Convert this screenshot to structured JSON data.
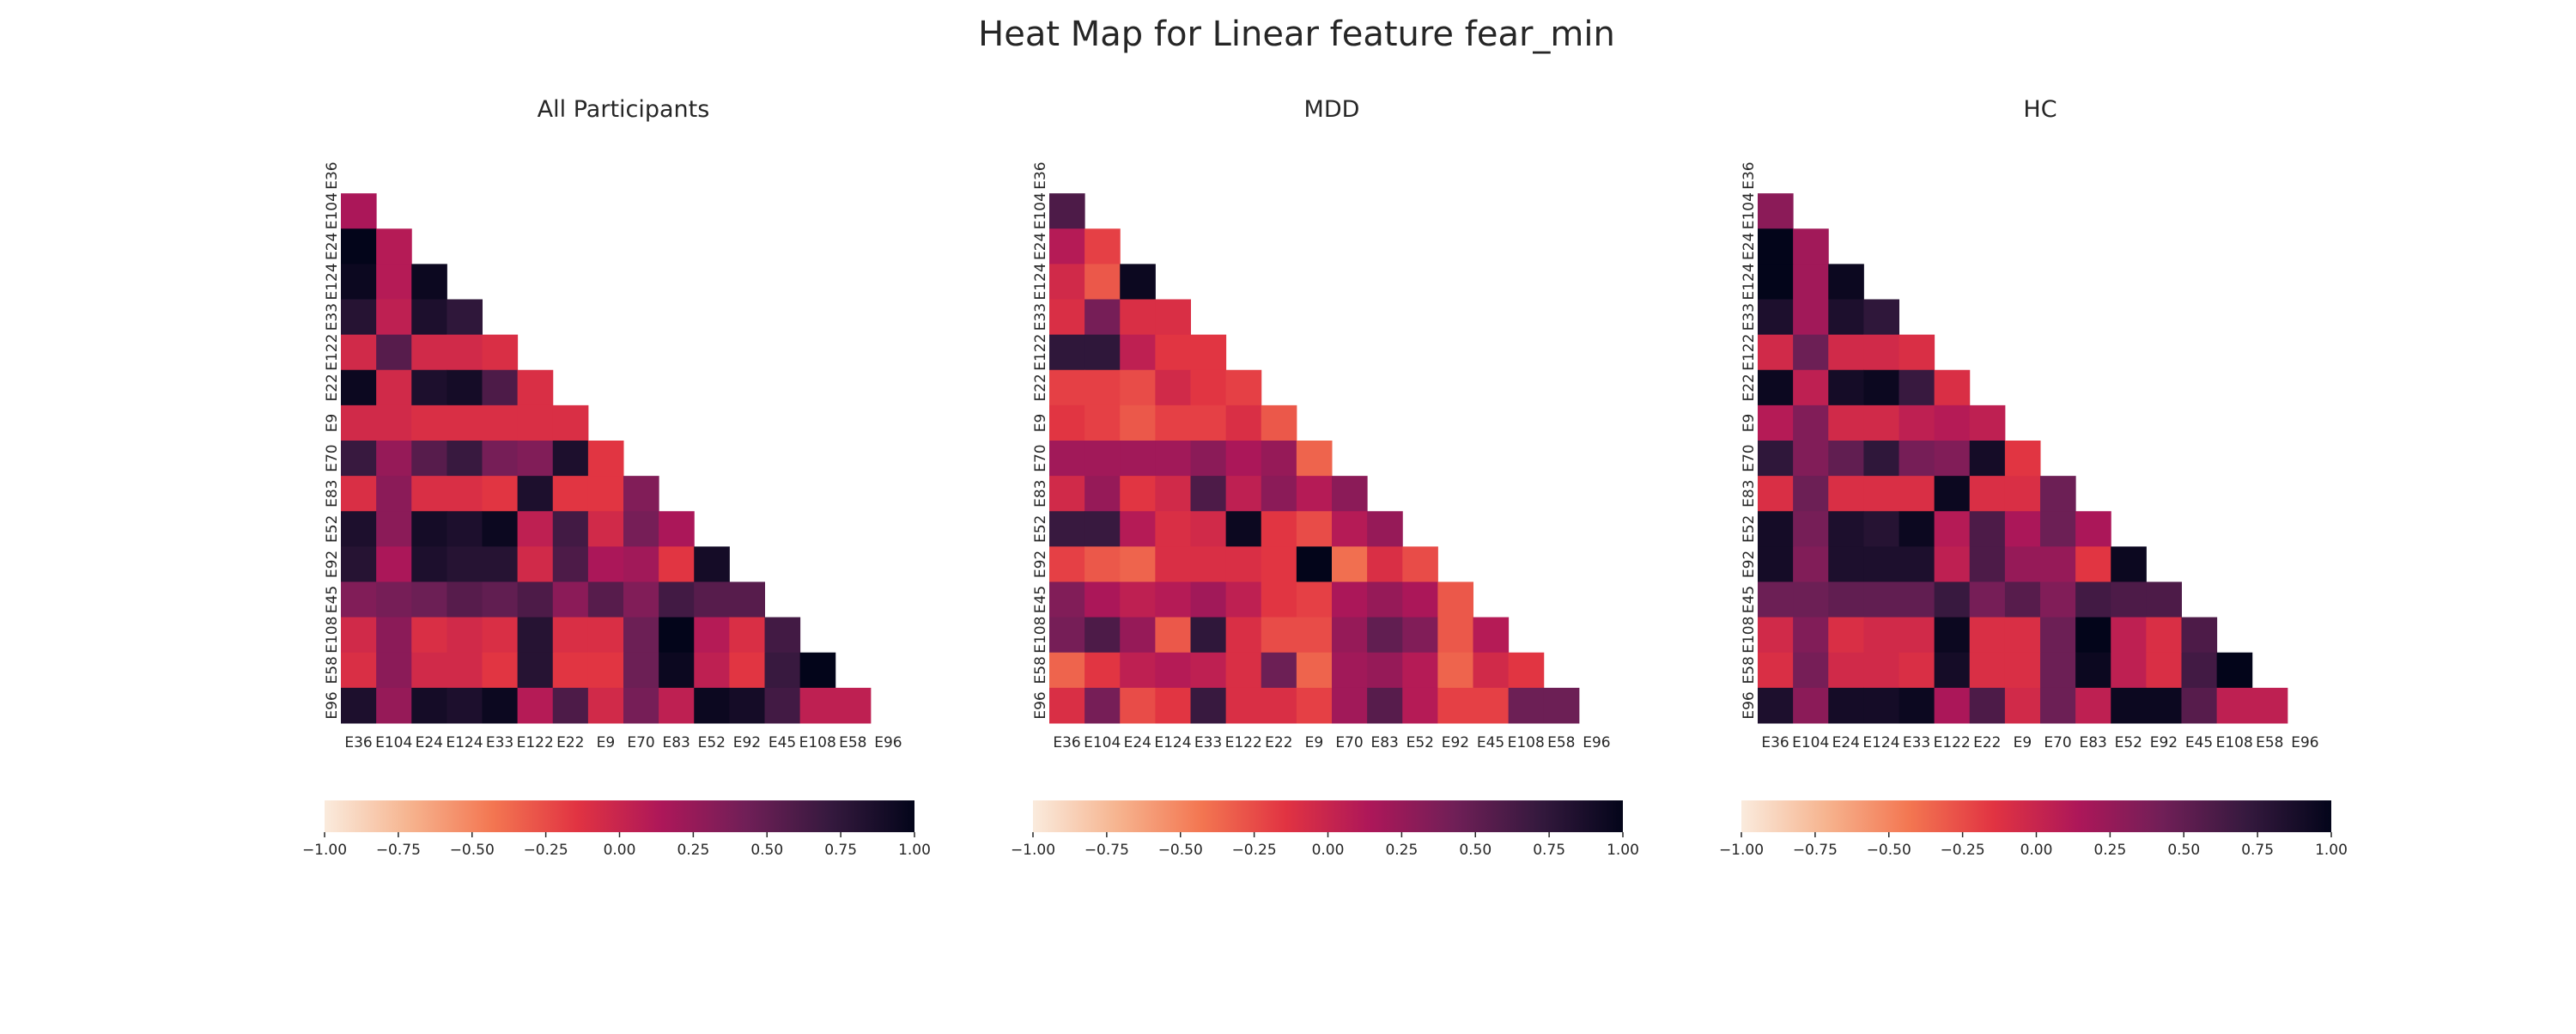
{
  "figure": {
    "title": "Heat Map for Linear feature fear_min"
  },
  "colorbar": {
    "ticks": [
      "−1.00",
      "−0.75",
      "−0.50",
      "−0.25",
      "0.00",
      "0.25",
      "0.50",
      "0.75",
      "1.00"
    ],
    "range": [
      -1,
      1
    ],
    "colormap": "rocket_r",
    "stops": [
      "#faebdd",
      "#f6b48f",
      "#f37651",
      "#e13342",
      "#ad1759",
      "#701f57",
      "#35193e",
      "#03051a"
    ]
  },
  "chart_data": [
    {
      "type": "heatmap",
      "title": "All Participants",
      "labels": [
        "E36",
        "E104",
        "E24",
        "E124",
        "E33",
        "E122",
        "E22",
        "E9",
        "E70",
        "E83",
        "E52",
        "E92",
        "E45",
        "E108",
        "E58",
        "E96"
      ],
      "lower_triangle_only": true,
      "values": [
        [],
        [
          0.15
        ],
        [
          1.0,
          0.1
        ],
        [
          0.95,
          0.1,
          0.95
        ],
        [
          0.8,
          0.05,
          0.85,
          0.75
        ],
        [
          -0.05,
          0.55,
          -0.05,
          -0.05,
          -0.1
        ],
        [
          0.95,
          -0.05,
          0.85,
          0.9,
          0.6,
          -0.1
        ],
        [
          -0.05,
          -0.05,
          -0.1,
          -0.1,
          -0.1,
          -0.1,
          -0.1
        ],
        [
          0.7,
          0.25,
          0.55,
          0.7,
          0.4,
          0.35,
          0.85,
          -0.15
        ],
        [
          -0.1,
          0.3,
          -0.1,
          -0.1,
          -0.15,
          0.85,
          -0.15,
          -0.15,
          0.35
        ],
        [
          0.85,
          0.3,
          0.9,
          0.85,
          0.95,
          0.05,
          0.65,
          -0.05,
          0.4,
          0.15
        ],
        [
          0.8,
          0.15,
          0.85,
          0.8,
          0.8,
          -0.05,
          0.6,
          0.15,
          0.2,
          -0.15,
          0.9
        ],
        [
          0.35,
          0.4,
          0.45,
          0.55,
          0.5,
          0.6,
          0.3,
          0.55,
          0.35,
          0.65,
          0.55,
          0.55
        ],
        [
          -0.05,
          0.3,
          -0.1,
          -0.05,
          -0.1,
          0.8,
          -0.1,
          -0.1,
          0.45,
          1.0,
          0.1,
          -0.1,
          0.65
        ],
        [
          -0.1,
          0.3,
          -0.05,
          -0.05,
          -0.15,
          0.8,
          -0.15,
          -0.15,
          0.45,
          0.95,
          0.05,
          -0.15,
          0.7,
          1.0
        ],
        [
          0.85,
          0.25,
          0.9,
          0.85,
          0.95,
          0.1,
          0.6,
          -0.05,
          0.4,
          0.05,
          0.95,
          0.9,
          0.65,
          0.05,
          0.05
        ]
      ]
    },
    {
      "type": "heatmap",
      "title": "MDD",
      "labels": [
        "E36",
        "E104",
        "E24",
        "E124",
        "E33",
        "E122",
        "E22",
        "E9",
        "E70",
        "E83",
        "E52",
        "E92",
        "E45",
        "E108",
        "E58",
        "E96"
      ],
      "lower_triangle_only": true,
      "values": [
        [],
        [
          0.6
        ],
        [
          0.1,
          -0.2
        ],
        [
          -0.05,
          -0.3,
          0.95
        ],
        [
          -0.1,
          0.4,
          -0.1,
          -0.1
        ],
        [
          0.75,
          0.75,
          0.05,
          -0.15,
          -0.15
        ],
        [
          -0.2,
          -0.2,
          -0.25,
          -0.05,
          -0.15,
          -0.2
        ],
        [
          -0.15,
          -0.2,
          -0.3,
          -0.2,
          -0.2,
          -0.1,
          -0.3
        ],
        [
          0.2,
          0.2,
          0.2,
          0.2,
          0.3,
          0.15,
          0.25,
          -0.35
        ],
        [
          -0.05,
          0.25,
          -0.15,
          -0.05,
          0.6,
          0.05,
          0.3,
          0.1,
          0.3
        ],
        [
          0.7,
          0.7,
          0.1,
          -0.1,
          -0.05,
          0.95,
          -0.15,
          -0.25,
          0.1,
          0.25
        ],
        [
          -0.2,
          -0.3,
          -0.35,
          -0.1,
          -0.1,
          -0.1,
          -0.15,
          1.0,
          -0.4,
          -0.1,
          -0.25
        ],
        [
          0.35,
          0.15,
          0.05,
          0.1,
          0.2,
          0.05,
          -0.15,
          -0.2,
          0.15,
          0.25,
          0.15,
          -0.3
        ],
        [
          0.4,
          0.6,
          0.25,
          -0.3,
          0.75,
          -0.1,
          -0.25,
          -0.25,
          0.25,
          0.5,
          0.35,
          -0.3,
          0.1
        ],
        [
          -0.35,
          -0.15,
          0.05,
          0.1,
          0.05,
          -0.1,
          0.45,
          -0.35,
          0.2,
          0.25,
          0.1,
          -0.35,
          -0.05,
          -0.15
        ],
        [
          -0.1,
          0.4,
          -0.25,
          -0.15,
          0.7,
          -0.1,
          -0.1,
          -0.2,
          0.2,
          0.55,
          0.1,
          -0.2,
          -0.2,
          0.45,
          0.45
        ]
      ]
    },
    {
      "type": "heatmap",
      "title": "HC",
      "labels": [
        "E36",
        "E104",
        "E24",
        "E124",
        "E33",
        "E122",
        "E22",
        "E9",
        "E70",
        "E83",
        "E52",
        "E92",
        "E45",
        "E108",
        "E58",
        "E96"
      ],
      "lower_triangle_only": true,
      "values": [
        [],
        [
          0.3
        ],
        [
          1.0,
          0.2
        ],
        [
          1.0,
          0.2,
          0.95
        ],
        [
          0.85,
          0.2,
          0.85,
          0.75
        ],
        [
          -0.05,
          0.45,
          -0.05,
          -0.05,
          -0.1
        ],
        [
          0.95,
          0.05,
          0.9,
          0.95,
          0.7,
          -0.1
        ],
        [
          0.1,
          0.35,
          -0.05,
          -0.05,
          0.05,
          0.1,
          0.05
        ],
        [
          0.75,
          0.35,
          0.5,
          0.75,
          0.4,
          0.35,
          0.9,
          -0.15
        ],
        [
          -0.1,
          0.45,
          -0.1,
          -0.1,
          -0.1,
          0.95,
          -0.1,
          -0.1,
          0.45
        ],
        [
          0.9,
          0.4,
          0.85,
          0.8,
          0.95,
          0.1,
          0.6,
          0.15,
          0.45,
          0.15
        ],
        [
          0.9,
          0.35,
          0.85,
          0.85,
          0.85,
          0.05,
          0.6,
          0.25,
          0.25,
          -0.15,
          0.95
        ],
        [
          0.45,
          0.45,
          0.5,
          0.5,
          0.5,
          0.7,
          0.4,
          0.55,
          0.35,
          0.65,
          0.6,
          0.6
        ],
        [
          -0.05,
          0.35,
          -0.1,
          -0.05,
          -0.05,
          0.95,
          -0.1,
          -0.1,
          0.45,
          1.0,
          0.05,
          -0.1,
          0.6
        ],
        [
          -0.1,
          0.4,
          -0.05,
          -0.05,
          -0.1,
          0.9,
          -0.1,
          -0.1,
          0.45,
          0.95,
          0.05,
          -0.1,
          0.65,
          1.0
        ],
        [
          0.85,
          0.3,
          0.9,
          0.9,
          0.95,
          0.15,
          0.6,
          -0.05,
          0.45,
          0.05,
          0.95,
          0.95,
          0.55,
          0.05,
          0.05
        ]
      ]
    }
  ]
}
